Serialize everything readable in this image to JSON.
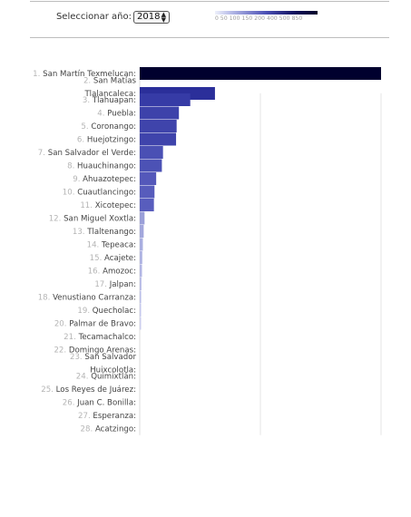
{
  "header": {
    "select_label": "Seleccionar año:",
    "selected_year": "2018",
    "legend_ticks": "0   50 100 150 200 400 500 850",
    "legend_colors": [
      "#eef0fb",
      "#b8bde8",
      "#4b50b5",
      "#0c0c56",
      "#00002a"
    ]
  },
  "chart_data": {
    "type": "bar",
    "orientation": "horizontal",
    "title": "",
    "xlabel": "",
    "ylabel": "",
    "xlim": [
      0,
      850
    ],
    "grid": true,
    "categories": [
      {
        "rank": "1.",
        "name": "San Martín Texmelucan:"
      },
      {
        "rank": "2.",
        "name": "San Matías Tlalancaleca:"
      },
      {
        "rank": "3.",
        "name": "Tlahuapan:"
      },
      {
        "rank": "4.",
        "name": "Puebla:"
      },
      {
        "rank": "5.",
        "name": "Coronango:"
      },
      {
        "rank": "6.",
        "name": "Huejotzingo:"
      },
      {
        "rank": "7.",
        "name": "San Salvador el Verde:"
      },
      {
        "rank": "8.",
        "name": "Huauchinango:"
      },
      {
        "rank": "9.",
        "name": "Ahuazotepec:"
      },
      {
        "rank": "10.",
        "name": "Cuautlancingo:"
      },
      {
        "rank": "11.",
        "name": "Xicotepec:"
      },
      {
        "rank": "12.",
        "name": "San Miguel Xoxtla:"
      },
      {
        "rank": "13.",
        "name": "Tlaltenango:"
      },
      {
        "rank": "14.",
        "name": "Tepeaca:"
      },
      {
        "rank": "15.",
        "name": "Acajete:"
      },
      {
        "rank": "16.",
        "name": "Amozoc:"
      },
      {
        "rank": "17.",
        "name": "Jalpan:"
      },
      {
        "rank": "18.",
        "name": "Venustiano Carranza:"
      },
      {
        "rank": "19.",
        "name": "Quecholac:"
      },
      {
        "rank": "20.",
        "name": "Palmar de Bravo:"
      },
      {
        "rank": "21.",
        "name": "Tecamachalco:"
      },
      {
        "rank": "22.",
        "name": "Domingo Arenas:"
      },
      {
        "rank": "23.",
        "name": "San Salvador Huixcolotla:"
      },
      {
        "rank": "24.",
        "name": "Quimixtlán:"
      },
      {
        "rank": "25.",
        "name": "Los Reyes de Juárez:"
      },
      {
        "rank": "26.",
        "name": "Juan C. Bonilla:"
      },
      {
        "rank": "27.",
        "name": "Esperanza:"
      },
      {
        "rank": "28.",
        "name": "Acatzingo:"
      }
    ],
    "values": [
      850,
      265,
      178,
      138,
      130,
      128,
      82,
      78,
      58,
      52,
      50,
      17,
      14,
      11,
      9,
      8,
      6,
      5,
      3,
      2,
      0,
      0,
      0,
      0,
      0,
      0,
      0,
      0
    ],
    "colors": [
      "#00002e",
      "#2b2f9a",
      "#363ba6",
      "#3d42aa",
      "#3f44ab",
      "#3f44ab",
      "#4a50b4",
      "#4c52b5",
      "#5458ba",
      "#575cbc",
      "#585dbd",
      "#9a9fd8",
      "#a2a7dc",
      "#a9aee0",
      "#aeb3e2",
      "#b2b6e4",
      "#b7bbe6",
      "#bbbfe8",
      "#c5c8ec",
      "#cccfee",
      "#ffffff",
      "#ffffff",
      "#ffffff",
      "#ffffff",
      "#ffffff",
      "#ffffff",
      "#ffffff",
      "#ffffff"
    ]
  }
}
